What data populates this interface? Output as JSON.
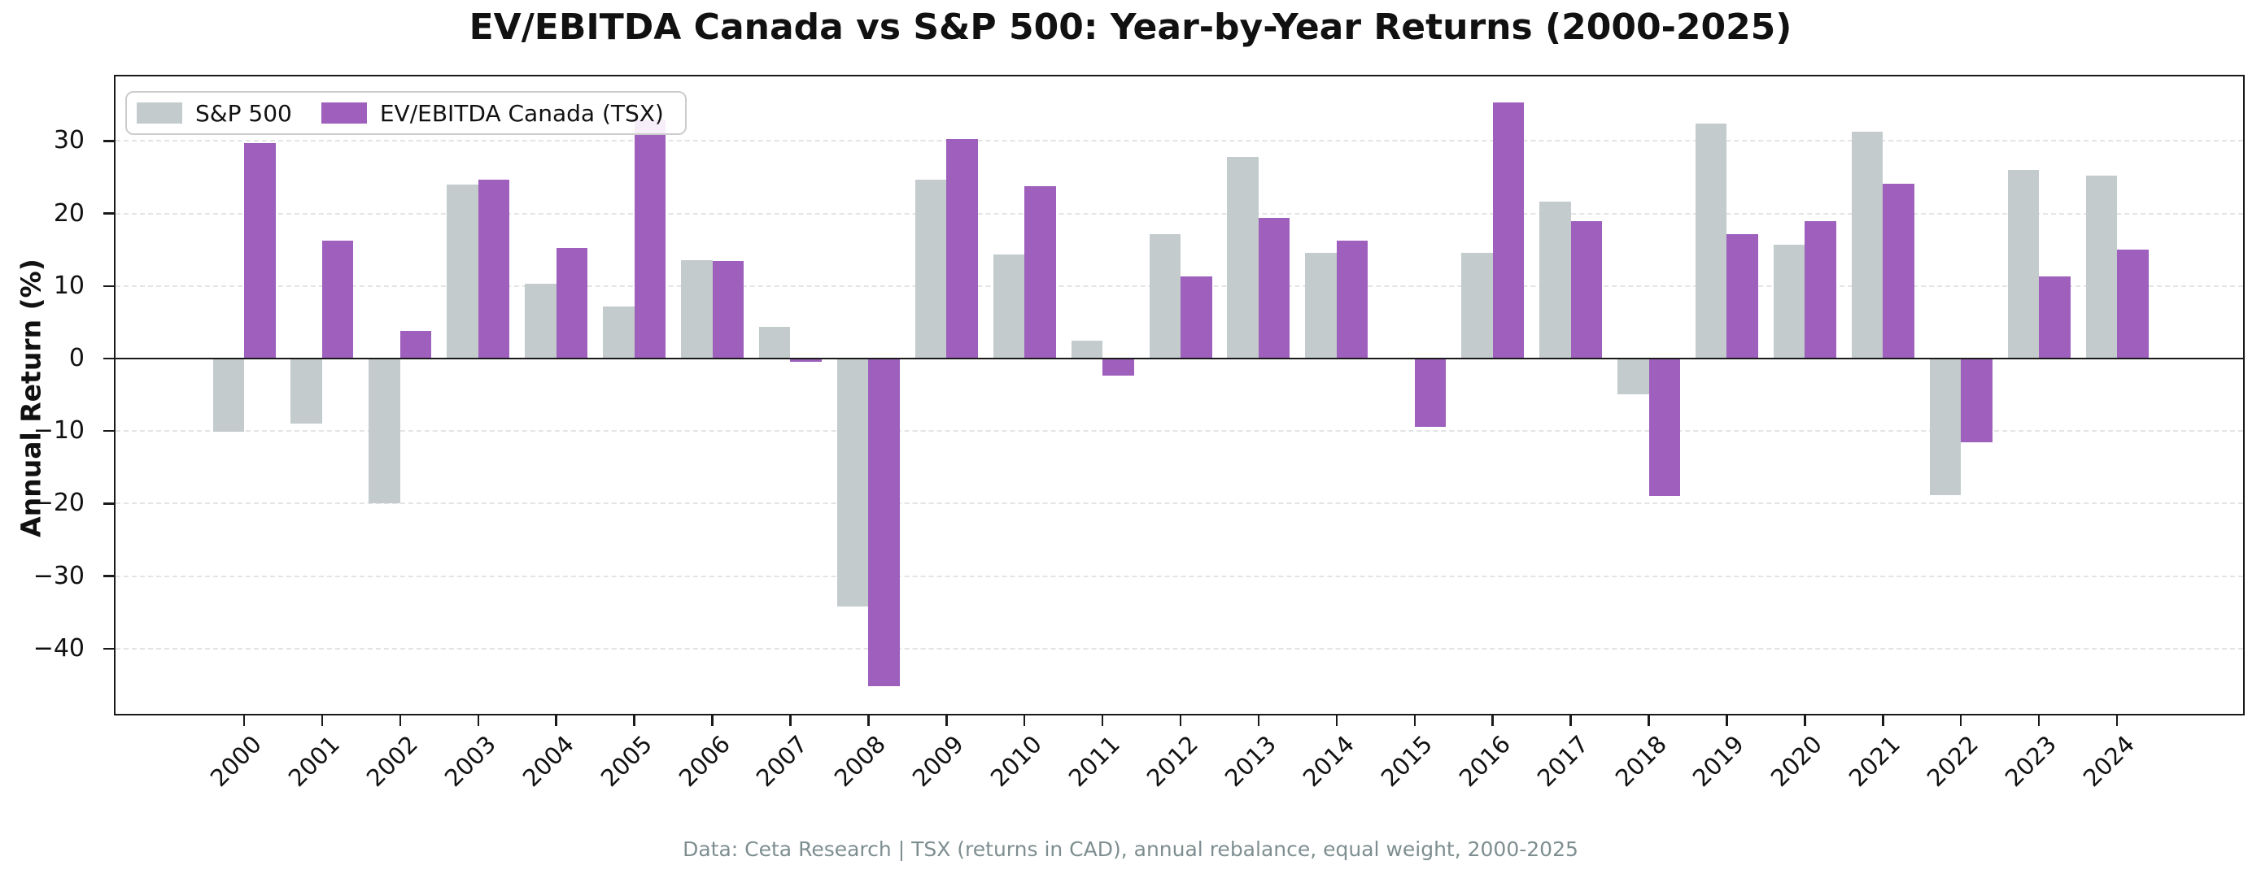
{
  "title": "EV/EBITDA Canada vs S&P 500: Year-by-Year Returns (2000-2025)",
  "y_axis_label": "Annual Return (%)",
  "footer": "Data: Ceta Research | TSX (returns in CAD), annual rebalance, equal weight, 2000-2025",
  "legend": {
    "items": [
      {
        "label": "S&P 500",
        "color": "#c3cbcd"
      },
      {
        "label": "EV/EBITDA Canada (TSX)",
        "color": "#9e5fbd"
      }
    ]
  },
  "colors": {
    "sp500_bar": "#c3cbcd",
    "canada_bar": "#9e5fbd",
    "grid": "#e4e4e4",
    "axis": "#1a1a1a",
    "footer_text": "#7e8e90"
  },
  "chart_data": {
    "type": "bar",
    "title": "EV/EBITDA Canada vs S&P 500: Year-by-Year Returns (2000-2025)",
    "xlabel": "",
    "ylabel": "Annual Return (%)",
    "categories": [
      "2000",
      "2001",
      "2002",
      "2003",
      "2004",
      "2005",
      "2006",
      "2007",
      "2008",
      "2009",
      "2010",
      "2011",
      "2012",
      "2013",
      "2014",
      "2015",
      "2016",
      "2017",
      "2018",
      "2019",
      "2020",
      "2021",
      "2022",
      "2023",
      "2024"
    ],
    "series": [
      {
        "name": "S&P 500",
        "color": "#c3cbcd",
        "values": [
          -10.1,
          -9.0,
          -20.0,
          24.0,
          10.3,
          7.2,
          13.6,
          4.4,
          -34.2,
          24.7,
          14.4,
          2.5,
          17.1,
          27.8,
          14.6,
          0.0,
          14.6,
          21.6,
          -4.9,
          32.4,
          15.7,
          31.3,
          -18.8,
          26.0,
          25.2
        ]
      },
      {
        "name": "EV/EBITDA Canada (TSX)",
        "color": "#9e5fbd",
        "values": [
          29.7,
          16.2,
          3.8,
          24.7,
          15.3,
          33.0,
          13.5,
          -0.5,
          -45.2,
          30.3,
          23.8,
          -2.3,
          11.3,
          19.4,
          16.2,
          -9.4,
          35.3,
          19.0,
          -19.0,
          17.2,
          18.9,
          24.1,
          -11.5,
          11.3,
          15.0
        ]
      }
    ],
    "yticks": [
      30,
      20,
      10,
      0,
      -10,
      -20,
      -30,
      -40
    ],
    "ylim": [
      -49.2,
      39.1
    ],
    "grid": "horizontal-dashed",
    "zero_line": true,
    "legend_position": "upper-left",
    "xtick_rotation": 45
  }
}
